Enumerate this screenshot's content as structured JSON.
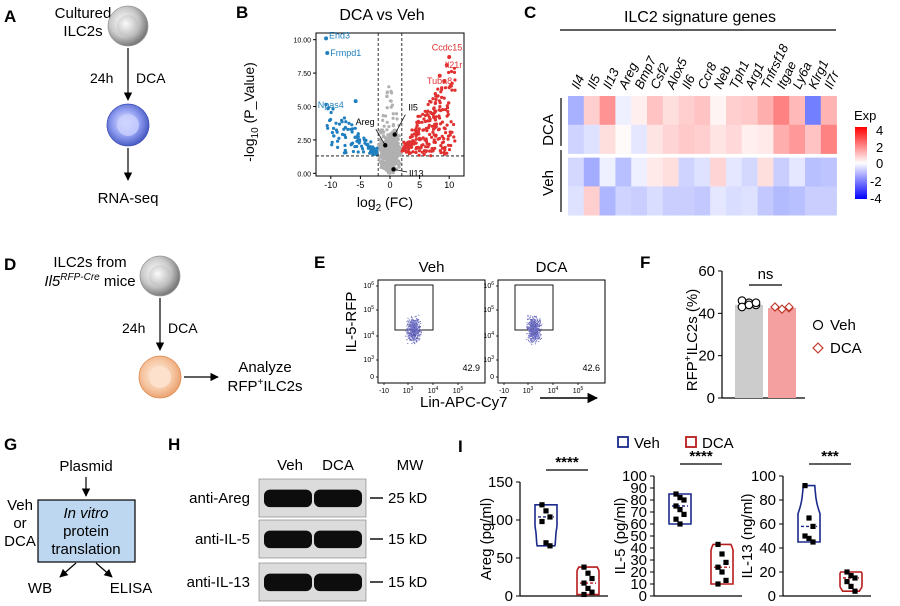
{
  "panel_labels": {
    "A": "A",
    "B": "B",
    "C": "C",
    "D": "D",
    "E": "E",
    "F": "F",
    "G": "G",
    "H": "H",
    "I": "I"
  },
  "panelA": {
    "top_line1": "Cultured",
    "top_line2": "ILC2s",
    "step": "24h",
    "treatment": "DCA",
    "bottom": "RNA-seq"
  },
  "panelB": {
    "title": "DCA vs Veh",
    "ylabel": "-log",
    "ylabel_sub": "10",
    "ylabel_rest": " (P_Value)",
    "xlabel": "log",
    "xlabel_sub": "2",
    "xlabel_rest": " (FC)",
    "xticks": [
      "-10",
      "-5",
      "0",
      "5",
      "10"
    ],
    "yticks": [
      "0.00",
      "2.50",
      "5.00",
      "7.50",
      "10.00"
    ],
    "left_genes": [
      "Ehd3",
      "Frmpd1",
      "Npas4"
    ],
    "right_genes": [
      "Ccdc15",
      "Il21r",
      "Tuba8"
    ],
    "center_genes": [
      "Areg",
      "Il5",
      "Il13"
    ],
    "colors": {
      "down": "#1f7fbf",
      "up": "#e03030",
      "ns": "#b0b0b0"
    }
  },
  "panelC": {
    "title": "ILC2 signature genes",
    "genes": [
      "Il4",
      "Il5",
      "Il13",
      "Areg",
      "Bmp7",
      "Csf2",
      "Alox5",
      "Il6",
      "Ccr8",
      "Neb",
      "Tph1",
      "Arg1",
      "Tnfrsf18",
      "Itgae",
      "Ly6a",
      "Klrg1",
      "Il7r"
    ],
    "groups": [
      "DCA",
      "Veh"
    ],
    "legend_title": "Exp",
    "legend_ticks": [
      "4",
      "2",
      "0",
      "-2",
      "-4"
    ],
    "matrix": [
      [
        -1.6,
        0.9,
        2.0,
        -0.3,
        0.3,
        1.1,
        0.6,
        0.9,
        1.1,
        0.2,
        0.9,
        1.0,
        1.5,
        2.3,
        1.3,
        -2.6,
        1.4
      ],
      [
        -0.9,
        -0.6,
        0.6,
        0.1,
        -0.5,
        0.5,
        0.8,
        1.0,
        0.9,
        0.5,
        0.7,
        0.3,
        0.4,
        1.5,
        1.9,
        1.1,
        2.3
      ],
      [
        -0.8,
        -1.7,
        -0.3,
        -1.3,
        -0.3,
        0.4,
        0.6,
        -0.9,
        -0.6,
        0.8,
        -0.5,
        -0.8,
        0.6,
        -1.0,
        -0.5,
        -1.3,
        -1.2
      ],
      [
        -0.6,
        0.9,
        -1.5,
        -0.9,
        -1.0,
        -0.7,
        -1.0,
        -1.0,
        -1.1,
        -0.5,
        -0.7,
        -0.6,
        -1.1,
        -1.4,
        -1.3,
        -1.0,
        -1.0
      ]
    ]
  },
  "panelD": {
    "top_line1": "ILC2s from",
    "mouse": "Il5",
    "mouse_sup": "RFP-Cre",
    "mouse_rest": " mice",
    "step": "24h",
    "treatment": "DCA",
    "analyze_line1": "Analyze",
    "analyze_line2": "RFP",
    "analyze_sup": "+",
    "analyze_rest": "ILC2s"
  },
  "panelE": {
    "ylabel": "IL-5-RFP",
    "xlabel": "Lin-APC-Cy7",
    "plots": [
      {
        "title": "Veh",
        "pct": "42.9"
      },
      {
        "title": "DCA",
        "pct": "42.6"
      }
    ],
    "yticks": [
      "10",
      "10",
      "10",
      "10",
      "0"
    ],
    "yexp": [
      "6",
      "5",
      "4",
      "3",
      ""
    ],
    "xticks": [
      "-10",
      "10",
      "10",
      "10"
    ],
    "xexp": [
      "",
      "3",
      "4",
      "5"
    ],
    "xdist": [
      "3",
      "4",
      "5"
    ]
  },
  "panelF": {
    "ylabel_pre": "RFP",
    "ylabel_sup": "+",
    "ylabel_rest": "ILC2s (%)",
    "yticks": [
      "0",
      "20",
      "40",
      "60"
    ],
    "sig": "ns",
    "legend": [
      "Veh",
      "DCA"
    ],
    "chart_data": {
      "type": "bar",
      "categories": [
        "Veh",
        "DCA"
      ],
      "values": [
        44,
        42.5
      ],
      "ylim": [
        0,
        60
      ],
      "points": {
        "Veh": [
          46,
          45,
          44,
          43,
          44,
          45
        ],
        "DCA": [
          43,
          42,
          42.5,
          43,
          42,
          43
        ]
      }
    },
    "colors": {
      "Veh": "#cccccc",
      "DCA": "#f4a0a0",
      "dca_marker": "#c0392b"
    }
  },
  "panelG": {
    "top": "Plasmid",
    "side1": "Veh",
    "side2": "or",
    "side3": "DCA",
    "box1": "In vitro",
    "box2": "protein",
    "box3": "translation",
    "out1": "WB",
    "out2": "ELISA"
  },
  "panelH": {
    "col1": "Veh",
    "col2": "DCA",
    "col3": "MW",
    "rows": [
      {
        "label": "anti-Areg",
        "mw": "25 kD"
      },
      {
        "label": "anti-IL-5",
        "mw": "15 kD"
      },
      {
        "label": "anti-IL-13",
        "mw": "15 kD"
      }
    ]
  },
  "panelI": {
    "legend": [
      "Veh",
      "DCA"
    ],
    "colors": {
      "Veh": "#1b2a8c",
      "DCA": "#b81c1c"
    },
    "charts": [
      {
        "ylabel": "Areg (pg/ml)",
        "sig": "****",
        "yticks": [
          "0",
          "50",
          "100",
          "150"
        ],
        "ylim": [
          0,
          150
        ],
        "veh": [
          120,
          112,
          104,
          98,
          70,
          66
        ],
        "dca": [
          38,
          30,
          23,
          17,
          10,
          5,
          2
        ]
      },
      {
        "ylabel": "IL-5 (pg/ml)",
        "sig": "****",
        "yticks": [
          "0",
          "10",
          "20",
          "30",
          "40",
          "50",
          "60",
          "70",
          "80",
          "90",
          "100"
        ],
        "ylim": [
          0,
          100
        ],
        "veh": [
          85,
          82,
          80,
          75,
          72,
          68,
          64,
          60
        ],
        "dca": [
          43,
          35,
          28,
          24,
          20,
          13,
          10
        ]
      },
      {
        "ylabel": "IL-13 (ng/ml)",
        "sig": "***",
        "yticks": [
          "0",
          "20",
          "40",
          "60",
          "80",
          "100"
        ],
        "ylim": [
          0,
          100
        ],
        "veh": [
          92,
          65,
          58,
          50,
          48,
          45
        ],
        "dca": [
          20,
          17,
          15,
          12,
          8,
          4
        ]
      }
    ]
  }
}
